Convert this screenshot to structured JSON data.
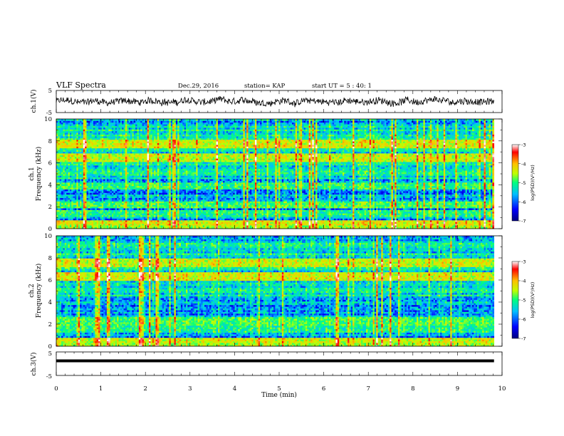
{
  "header": {
    "title": "VLF Spectra",
    "date": "Dec.29, 2016",
    "station": "station= KAP",
    "start": "start  UT =   5 : 40: 1"
  },
  "colors": {
    "axis": "#000000",
    "trace": "#000000",
    "colormap": [
      "#00007f",
      "#0000ff",
      "#00bfff",
      "#00ff7f",
      "#bfff00",
      "#ffbf00",
      "#ff0000",
      "#ffffff"
    ]
  },
  "chart_data": [
    {
      "id": "ch1-waveform",
      "type": "line",
      "ylabel": "ch.1(V)",
      "xlim": [
        0,
        10
      ],
      "ylim": [
        -5,
        5
      ],
      "yticks": [
        "5",
        "-5"
      ],
      "x_end": 9.82,
      "baseline": 0,
      "amplitude": 1.5
    },
    {
      "id": "ch1-spectrogram",
      "type": "heatmap",
      "ylabel": "ch.1",
      "ylabel2": "Frequency  (kHz)",
      "xlim": [
        0,
        10
      ],
      "ylim": [
        0,
        10
      ],
      "yticks": [
        "10",
        "8",
        "6",
        "4",
        "2",
        "0"
      ],
      "colorbar": {
        "label": "log(PSD)(V²/Hz)",
        "ticks": [
          "-3",
          "-4",
          "-5",
          "-6",
          "-7"
        ],
        "range": [
          -7,
          -3
        ]
      },
      "bands_khz": [
        {
          "f": 0.5,
          "level": -4.3
        },
        {
          "f": 1.4,
          "level": -5.2
        },
        {
          "f": 2.2,
          "level": -5.0
        },
        {
          "f": 3.9,
          "level": -5.1
        },
        {
          "f": 6.5,
          "level": -4.9
        },
        {
          "f": 7.7,
          "level": -4.8
        }
      ]
    },
    {
      "id": "ch2-spectrogram",
      "type": "heatmap",
      "ylabel": "ch.2",
      "ylabel2": "Frequency  (kHz)",
      "xlim": [
        0,
        10
      ],
      "ylim": [
        0,
        10
      ],
      "yticks": [
        "10",
        "8",
        "6",
        "4",
        "2",
        "0"
      ],
      "colorbar": {
        "label": "log(PSD)(V²/Hz)",
        "ticks": [
          "-3",
          "-4",
          "-5",
          "-6",
          "-7"
        ],
        "range": [
          -7,
          -3
        ]
      },
      "bands_khz": [
        {
          "f": 0.5,
          "level": -4.4
        },
        {
          "f": 1.6,
          "level": -5.2
        },
        {
          "f": 2.3,
          "level": -5.0
        },
        {
          "f": 6.3,
          "level": -4.8
        },
        {
          "f": 7.6,
          "level": -4.9
        }
      ]
    },
    {
      "id": "ch3-waveform",
      "type": "line",
      "ylabel": "ch.3(V)",
      "xlim": [
        0,
        10
      ],
      "ylim": [
        -5,
        5
      ],
      "yticks": [
        "5",
        "0",
        "-5"
      ],
      "x_end": 9.82,
      "baseline": 1.2,
      "amplitude": 0
    }
  ],
  "xaxis": {
    "label": "Time  (min)",
    "ticks": [
      "0",
      "1",
      "2",
      "3",
      "4",
      "5",
      "6",
      "7",
      "8",
      "9",
      "10"
    ]
  }
}
